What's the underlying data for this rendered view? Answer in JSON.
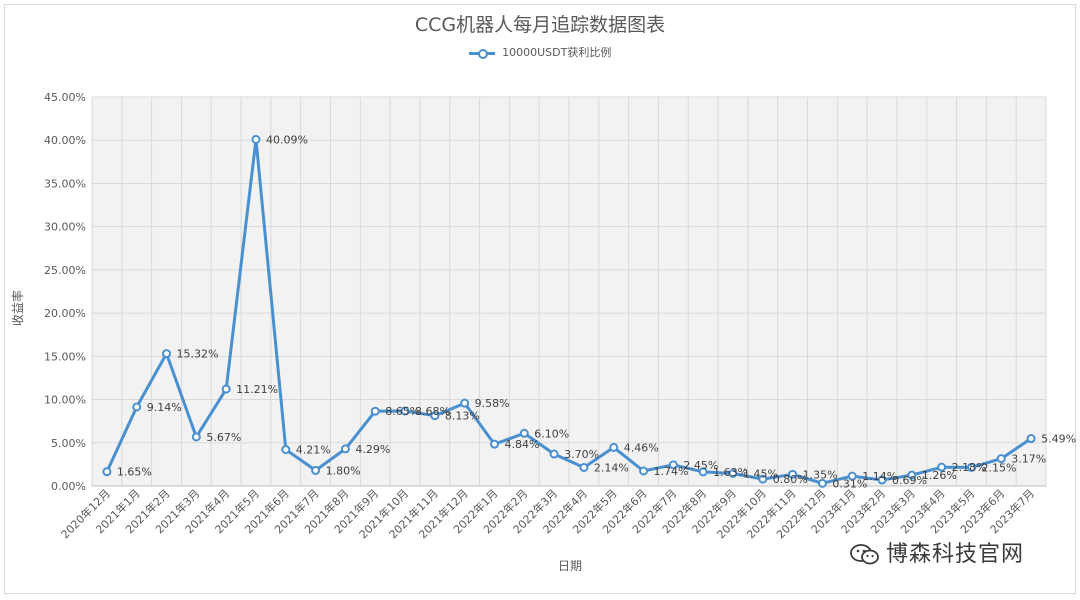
{
  "chart_data": {
    "type": "line",
    "title": "CCG机器人每月追踪数据图表",
    "xlabel": "日期",
    "ylabel": "收益率",
    "ylim": [
      0,
      45
    ],
    "yticks": [
      "0.00%",
      "5.00%",
      "10.00%",
      "15.00%",
      "20.00%",
      "25.00%",
      "30.00%",
      "35.00%",
      "40.00%",
      "45.00%"
    ],
    "grid": true,
    "legend_position": "top",
    "categories": [
      "2020年12月",
      "2021年1月",
      "2021年2月",
      "2021年3月",
      "2021年4月",
      "2021年5月",
      "2021年6月",
      "2021年7月",
      "2021年8月",
      "2021年9月",
      "2021年10月",
      "2021年11月",
      "2021年12月",
      "2022年1月",
      "2022年2月",
      "2022年3月",
      "2022年4月",
      "2022年5月",
      "2022年6月",
      "2022年7月",
      "2022年8月",
      "2022年9月",
      "2022年10月",
      "2022年11月",
      "2022年12月",
      "2023年1月",
      "2023年2月",
      "2023年3月",
      "2023年4月",
      "2023年5月",
      "2023年6月",
      "2023年7月"
    ],
    "series": [
      {
        "name": "10000USDT获利比例",
        "color": "#4a90d0",
        "values": [
          1.65,
          9.14,
          15.32,
          5.67,
          11.21,
          40.09,
          4.21,
          1.8,
          4.29,
          8.65,
          8.68,
          8.13,
          9.58,
          4.84,
          6.1,
          3.7,
          2.14,
          4.46,
          1.74,
          2.45,
          1.63,
          1.45,
          0.8,
          1.35,
          0.31,
          1.14,
          0.69,
          1.26,
          2.18,
          2.15,
          3.17,
          5.49
        ],
        "labels": [
          "1.65%",
          "9.14%",
          "15.32%",
          "5.67%",
          "11.21%",
          "40.09%",
          "4.21%",
          "1.80%",
          "4.29%",
          "8.65%",
          "8.68%",
          "8.13%",
          "9.58%",
          "4.84%",
          "6.10%",
          "3.70%",
          "2.14%",
          "4.46%",
          "1.74%",
          "2.45%",
          "1.63%",
          "1.45%",
          "0.80%",
          "1.35%",
          "0.31%",
          "1.14%",
          "0.69%",
          "1.26%",
          "2.18%",
          "2.15%",
          "3.17%",
          "5.49%"
        ]
      }
    ]
  },
  "watermark": {
    "text": "博森科技官网",
    "icon": "wechat-icon"
  }
}
